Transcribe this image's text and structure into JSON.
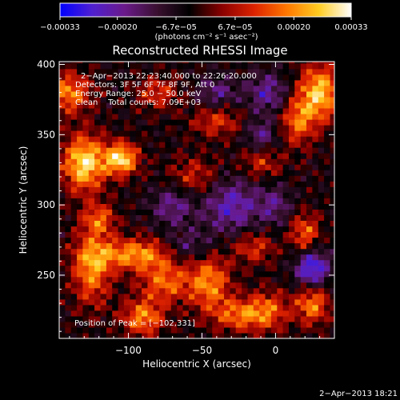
{
  "chart_data": {
    "type": "heatmap",
    "title": "Reconstructed RHESSI Image",
    "xlabel": "Heliocentric X (arcsec)",
    "ylabel": "Heliocentric Y (arcsec)",
    "xlim": [
      -147,
      40
    ],
    "ylim": [
      205,
      402
    ],
    "x_ticks": [
      -100,
      -50,
      0
    ],
    "x_tick_labels": [
      "−100",
      "−50",
      "0"
    ],
    "y_ticks": [
      250,
      300,
      350,
      400
    ],
    "y_tick_labels": [
      "250",
      "300",
      "350",
      "400"
    ],
    "colorbar": {
      "range": [
        -0.00033,
        0.00033
      ],
      "ticks": [
        -0.00033,
        -0.0002,
        -6.7e-05,
        6.7e-05,
        0.0002,
        0.00033
      ],
      "tick_labels": [
        "−0.00033",
        "−0.00020",
        "−6.7e−05",
        "6.7e−05",
        "0.00020",
        "0.00033"
      ],
      "colors": [
        "#0000ff",
        "#5020d0",
        "#6a1a8a",
        "#3a1030",
        "#000000",
        "#8a0000",
        "#dd2200",
        "#ff7700",
        "#ffcc22",
        "#ffffff"
      ],
      "unit_text": "(photons cm⁻² s⁻¹ asec⁻²)"
    },
    "annotations": [
      "2−Apr−2013 22:23:40.000 to 22:26:20.000",
      "Detectors: 3F 5F 6F 7F 8F 9F, Att 0",
      "Energy Range: 25.0 − 50.0 keV",
      "Clean    Total counts: 7.09E+03"
    ],
    "peak_label": "Position of Peak = [−102,331]",
    "peak_position": [
      -102,
      331
    ],
    "hotspots": [
      {
        "x": -130,
        "y": 330,
        "amp": 1.0,
        "sx": 10,
        "sy": 14
      },
      {
        "x": -105,
        "y": 333,
        "amp": 1.0,
        "sx": 8,
        "sy": 8
      },
      {
        "x": -140,
        "y": 380,
        "amp": 0.7,
        "sx": 10,
        "sy": 10
      },
      {
        "x": -95,
        "y": 265,
        "amp": 0.75,
        "sx": 20,
        "sy": 8
      },
      {
        "x": -125,
        "y": 255,
        "amp": 0.7,
        "sx": 9,
        "sy": 18
      },
      {
        "x": -90,
        "y": 220,
        "amp": 0.7,
        "sx": 10,
        "sy": 9
      },
      {
        "x": -75,
        "y": 245,
        "amp": 0.6,
        "sx": 12,
        "sy": 10
      },
      {
        "x": -45,
        "y": 245,
        "amp": 0.7,
        "sx": 10,
        "sy": 14
      },
      {
        "x": -25,
        "y": 222,
        "amp": 0.6,
        "sx": 12,
        "sy": 8
      },
      {
        "x": -5,
        "y": 225,
        "amp": 0.55,
        "sx": 10,
        "sy": 10
      },
      {
        "x": 20,
        "y": 280,
        "amp": 0.6,
        "sx": 7,
        "sy": 10
      },
      {
        "x": 25,
        "y": 230,
        "amp": 0.7,
        "sx": 8,
        "sy": 10
      },
      {
        "x": 30,
        "y": 380,
        "amp": 0.9,
        "sx": 10,
        "sy": 14
      },
      {
        "x": 15,
        "y": 360,
        "amp": 0.6,
        "sx": 8,
        "sy": 12
      },
      {
        "x": -40,
        "y": 360,
        "amp": 0.45,
        "sx": 12,
        "sy": 8
      },
      {
        "x": -80,
        "y": 380,
        "amp": 0.45,
        "sx": 10,
        "sy": 8
      },
      {
        "x": -55,
        "y": 320,
        "amp": 0.4,
        "sx": 12,
        "sy": 10
      },
      {
        "x": -120,
        "y": 290,
        "amp": 0.55,
        "sx": 8,
        "sy": 8
      },
      {
        "x": -15,
        "y": 270,
        "amp": 0.45,
        "sx": 10,
        "sy": 8
      },
      {
        "x": -10,
        "y": 330,
        "amp": 0.4,
        "sx": 10,
        "sy": 8
      }
    ],
    "coldspots": [
      {
        "x": -30,
        "y": 300,
        "amp": 0.7,
        "sx": 14,
        "sy": 14
      },
      {
        "x": 25,
        "y": 255,
        "amp": 1.0,
        "sx": 8,
        "sy": 10
      },
      {
        "x": -5,
        "y": 380,
        "amp": 0.6,
        "sx": 10,
        "sy": 10
      },
      {
        "x": -70,
        "y": 300,
        "amp": 0.55,
        "sx": 10,
        "sy": 10
      },
      {
        "x": -40,
        "y": 380,
        "amp": 0.5,
        "sx": 10,
        "sy": 8
      },
      {
        "x": -10,
        "y": 350,
        "amp": 0.5,
        "sx": 8,
        "sy": 8
      },
      {
        "x": -60,
        "y": 270,
        "amp": 0.5,
        "sx": 12,
        "sy": 8
      },
      {
        "x": 0,
        "y": 300,
        "amp": 0.45,
        "sx": 8,
        "sy": 10
      }
    ]
  },
  "footer_date": "2−Apr−2013 18:21"
}
